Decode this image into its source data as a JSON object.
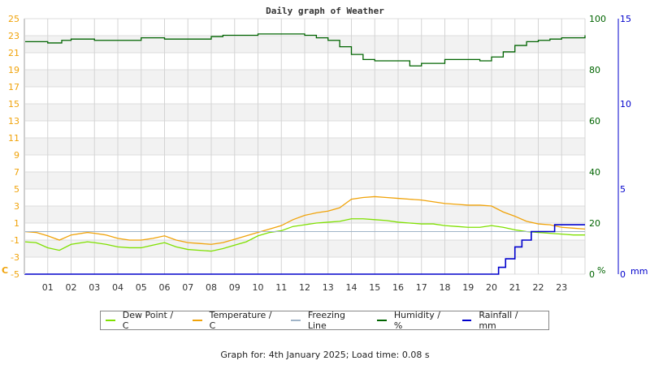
{
  "chart_data": {
    "type": "line",
    "title": "Daily graph of Weather",
    "xlabel": "",
    "x_ticks": [
      "01",
      "02",
      "03",
      "04",
      "05",
      "06",
      "07",
      "08",
      "09",
      "10",
      "11",
      "12",
      "13",
      "14",
      "15",
      "16",
      "17",
      "18",
      "19",
      "20",
      "21",
      "22",
      "23"
    ],
    "axes": {
      "temperature": {
        "label": "C",
        "ylim": [
          -5,
          25
        ],
        "ticks": [
          -5,
          -3,
          -1,
          1,
          3,
          5,
          7,
          9,
          11,
          13,
          15,
          17,
          19,
          21,
          23,
          25
        ],
        "color": "#f0a30a"
      },
      "humidity": {
        "label": "%",
        "ylim": [
          0,
          100
        ],
        "ticks": [
          0,
          20,
          40,
          60,
          80,
          100
        ],
        "color": "#006400"
      },
      "rainfall": {
        "label": "mm",
        "ylim": [
          0,
          15
        ],
        "ticks": [
          0,
          5,
          10,
          15
        ],
        "color": "#0000cc"
      }
    },
    "grid": true,
    "legend_position": "bottom",
    "series": [
      {
        "name": "Dew Point / C",
        "axis": "temperature",
        "color": "#7fe000",
        "x": [
          0,
          0.5,
          1,
          1.5,
          2,
          2.7,
          3,
          3.5,
          4,
          4.5,
          5,
          5.5,
          6,
          6.5,
          7,
          7.5,
          8,
          8.5,
          9,
          9.5,
          10,
          10.5,
          11,
          11.5,
          12,
          12.5,
          13,
          13.5,
          14,
          14.5,
          15,
          15.5,
          16,
          16.5,
          17,
          17.5,
          18,
          18.5,
          19,
          19.5,
          20,
          20.5,
          21,
          21.5,
          22,
          22.5,
          23,
          23.5,
          24
        ],
        "values": [
          -1.2,
          -1.3,
          -1.9,
          -2.2,
          -1.5,
          -1.2,
          -1.3,
          -1.5,
          -1.8,
          -1.9,
          -1.9,
          -1.6,
          -1.3,
          -1.8,
          -2.1,
          -2.2,
          -2.3,
          -2.0,
          -1.6,
          -1.2,
          -0.5,
          -0.1,
          0.1,
          0.6,
          0.8,
          1.0,
          1.1,
          1.2,
          1.5,
          1.5,
          1.4,
          1.3,
          1.1,
          1.0,
          0.9,
          0.9,
          0.7,
          0.6,
          0.5,
          0.5,
          0.7,
          0.5,
          0.2,
          0.0,
          -0.1,
          -0.2,
          -0.3,
          -0.4,
          -0.4
        ]
      },
      {
        "name": "Temperature / C",
        "axis": "temperature",
        "color": "#f0a30a",
        "x": [
          0,
          0.5,
          1,
          1.5,
          2,
          2.7,
          3,
          3.5,
          4,
          4.5,
          5,
          5.5,
          6,
          6.5,
          7,
          7.5,
          8,
          8.5,
          9,
          9.5,
          10,
          10.5,
          11,
          11.5,
          12,
          12.5,
          13,
          13.5,
          14,
          14.5,
          15,
          15.5,
          16,
          16.5,
          17,
          17.5,
          18,
          18.5,
          19,
          19.5,
          20,
          20.5,
          21,
          21.5,
          22,
          22.5,
          23,
          23.5,
          24
        ],
        "values": [
          0.0,
          -0.1,
          -0.5,
          -1.0,
          -0.4,
          -0.1,
          -0.2,
          -0.4,
          -0.8,
          -1.0,
          -1.0,
          -0.8,
          -0.5,
          -1.0,
          -1.3,
          -1.4,
          -1.5,
          -1.3,
          -0.9,
          -0.5,
          -0.1,
          0.3,
          0.7,
          1.4,
          1.9,
          2.2,
          2.4,
          2.8,
          3.8,
          4.0,
          4.1,
          4.0,
          3.9,
          3.8,
          3.7,
          3.5,
          3.3,
          3.2,
          3.1,
          3.1,
          3.0,
          2.3,
          1.8,
          1.2,
          0.9,
          0.8,
          0.5,
          0.4,
          0.3
        ]
      },
      {
        "name": "Freezing Line",
        "axis": "temperature",
        "color": "#a0b4c8",
        "x": [
          0,
          24
        ],
        "values": [
          0,
          0
        ]
      },
      {
        "name": "Humidity / %",
        "axis": "humidity",
        "color": "#006400",
        "x": [
          0,
          0.6,
          1,
          1.6,
          2,
          3,
          4,
          5,
          6,
          7,
          8,
          8.5,
          9,
          10,
          11,
          12,
          12.5,
          13,
          13.5,
          14,
          14.5,
          15,
          16,
          16.5,
          17,
          18,
          19,
          19.5,
          20,
          20.5,
          21,
          21.5,
          22,
          22.5,
          23,
          24
        ],
        "values": [
          91,
          91,
          90.5,
          91.5,
          92,
          91.5,
          91.5,
          92.5,
          92,
          92,
          93,
          93.5,
          93.5,
          94,
          94,
          93.5,
          92.5,
          91.5,
          89,
          86,
          84,
          83.5,
          83.5,
          81.5,
          82.5,
          84,
          84,
          83.5,
          85,
          87,
          89.5,
          91,
          91.5,
          92,
          92.5,
          93.5
        ]
      },
      {
        "name": "Rainfall / mm",
        "axis": "rainfall",
        "color": "#0000cc",
        "x": [
          0,
          20.05,
          20.3,
          20.6,
          21,
          21.3,
          21.7,
          22,
          22.7,
          24
        ],
        "values": [
          0,
          0,
          0.4,
          0.9,
          1.6,
          2.0,
          2.5,
          2.5,
          2.9,
          2.9
        ]
      }
    ]
  },
  "legend": [
    {
      "label": "Dew Point / C",
      "color": "#7fe000"
    },
    {
      "label": "Temperature / C",
      "color": "#f0a30a"
    },
    {
      "label": "Freezing Line",
      "color": "#a0b4c8"
    },
    {
      "label": "Humidity / %",
      "color": "#006400"
    },
    {
      "label": "Rainfall / mm",
      "color": "#0000cc"
    }
  ],
  "footer": "Graph for: 4th January 2025; Load time: 0.08 s"
}
